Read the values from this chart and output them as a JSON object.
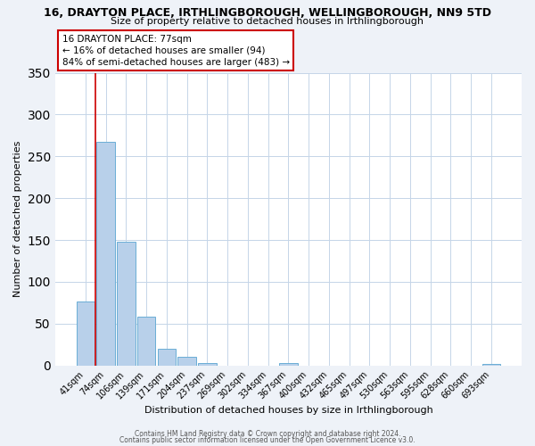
{
  "title": "16, DRAYTON PLACE, IRTHLINGBOROUGH, WELLINGBOROUGH, NN9 5TD",
  "subtitle": "Size of property relative to detached houses in Irthlingborough",
  "xlabel": "Distribution of detached houses by size in Irthlingborough",
  "ylabel": "Number of detached properties",
  "bar_labels": [
    "41sqm",
    "74sqm",
    "106sqm",
    "139sqm",
    "171sqm",
    "204sqm",
    "237sqm",
    "269sqm",
    "302sqm",
    "334sqm",
    "367sqm",
    "400sqm",
    "432sqm",
    "465sqm",
    "497sqm",
    "530sqm",
    "563sqm",
    "595sqm",
    "628sqm",
    "660sqm",
    "693sqm"
  ],
  "bar_values": [
    76,
    267,
    148,
    58,
    20,
    10,
    3,
    0,
    0,
    0,
    3,
    0,
    0,
    0,
    0,
    0,
    0,
    0,
    0,
    0,
    2
  ],
  "bar_color": "#b8d0ea",
  "bar_edgecolor": "#6aaed6",
  "ylim": [
    0,
    350
  ],
  "yticks": [
    0,
    50,
    100,
    150,
    200,
    250,
    300,
    350
  ],
  "vline_x": 0.5,
  "vline_color": "#cc0000",
  "annotation_box_text": "16 DRAYTON PLACE: 77sqm\n← 16% of detached houses are smaller (94)\n84% of semi-detached houses are larger (483) →",
  "footer1": "Contains HM Land Registry data © Crown copyright and database right 2024.",
  "footer2": "Contains public sector information licensed under the Open Government Licence v3.0.",
  "background_color": "#eef2f8",
  "plot_background_color": "#ffffff",
  "grid_color": "#c5d5e8",
  "title_fontsize": 9,
  "subtitle_fontsize": 8,
  "axis_label_fontsize": 8,
  "tick_fontsize": 7,
  "annotation_fontsize": 7.5,
  "footer_fontsize": 5.5
}
